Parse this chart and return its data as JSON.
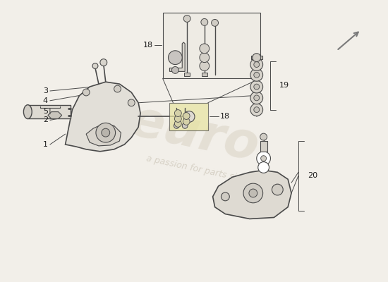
{
  "background_color": "#f2efe9",
  "line_color": "#4a4a4a",
  "label_color": "#1a1a1a",
  "watermark_color1": "#d4ccbc",
  "watermark_color2": "#c0b8a8",
  "fig_width": 5.5,
  "fig_height": 4.0,
  "dpi": 100,
  "arrow_color": "#7a7a7a",
  "highlight_color": "#e8e4a0",
  "part_bg": "#e8e4dc",
  "part_bg2": "#dedad2"
}
